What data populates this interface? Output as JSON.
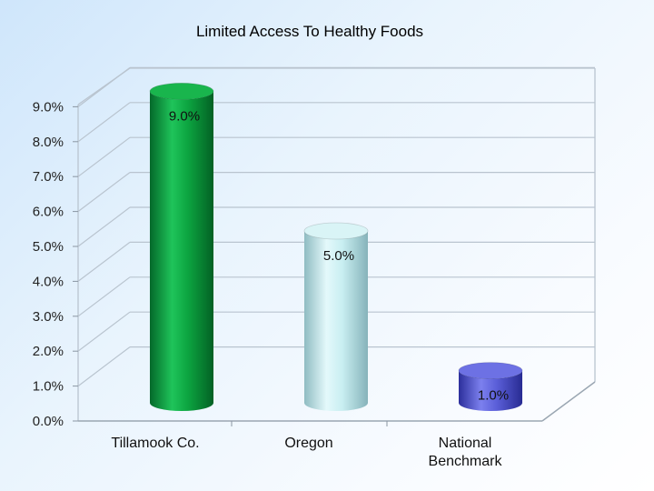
{
  "chart_data": {
    "type": "bar",
    "title": "Limited Access To Healthy Foods",
    "categories": [
      "Tillamook Co.",
      "Oregon",
      "National Benchmark"
    ],
    "category_lines": [
      [
        "Tillamook Co."
      ],
      [
        "Oregon"
      ],
      [
        "National",
        "Benchmark"
      ]
    ],
    "values": [
      9.0,
      5.0,
      1.0
    ],
    "data_labels": [
      "9.0%",
      "5.0%",
      "1.0%"
    ],
    "bar_colors": [
      "#0aa13b",
      "#c6ecf0",
      "#5a5ed8"
    ],
    "ylim": [
      0,
      9
    ],
    "yticks": [
      "0.0%",
      "1.0%",
      "2.0%",
      "3.0%",
      "4.0%",
      "5.0%",
      "6.0%",
      "7.0%",
      "8.0%",
      "9.0%"
    ],
    "grid": true,
    "legend": "none",
    "style": "3d-cylinder"
  }
}
